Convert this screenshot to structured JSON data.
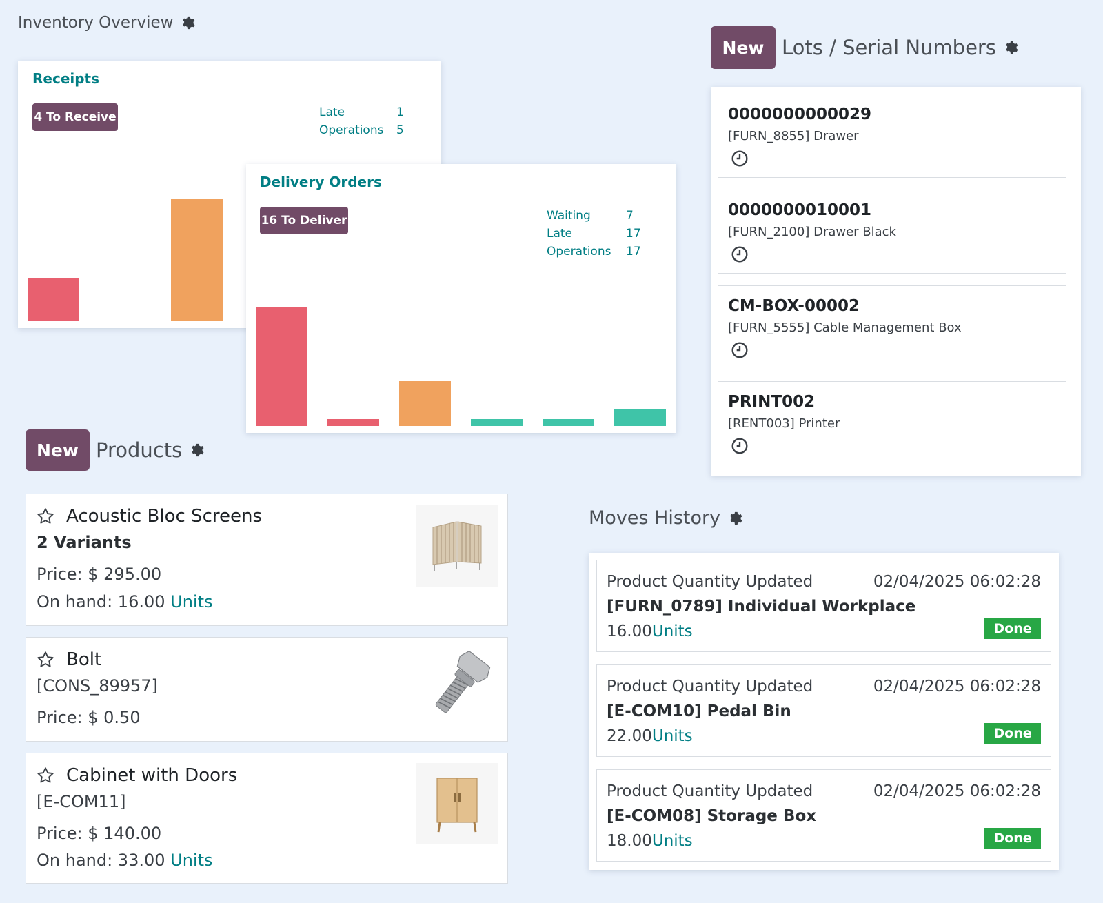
{
  "inventory": {
    "title": "Inventory Overview",
    "receipts": {
      "title": "Receipts",
      "button": "4 To Receive",
      "stats": [
        {
          "label": "Late",
          "value": "1"
        },
        {
          "label": "Operations",
          "value": "5"
        }
      ],
      "chart_data": {
        "type": "bar",
        "values": [
          10,
          0,
          30
        ],
        "colors": [
          "#e8606f",
          "#e8606f",
          "#f0a25e"
        ]
      }
    },
    "delivery": {
      "title": "Delivery Orders",
      "button": "16 To Deliver",
      "stats": [
        {
          "label": "Waiting",
          "value": "7"
        },
        {
          "label": "Late",
          "value": "17"
        },
        {
          "label": "Operations",
          "value": "17"
        }
      ],
      "chart_data": {
        "type": "bar",
        "values": [
          17,
          1,
          6.5,
          1,
          1,
          2.5
        ],
        "colors": [
          "#e8606f",
          "#e8606f",
          "#f0a25e",
          "#3fc4a8",
          "#3fc4a8",
          "#3fc4a8"
        ]
      }
    }
  },
  "lots": {
    "new_label": "New",
    "title": "Lots / Serial Numbers",
    "items": [
      {
        "code": "0000000000029",
        "product": "[FURN_8855] Drawer"
      },
      {
        "code": "0000000010001",
        "product": "[FURN_2100] Drawer Black"
      },
      {
        "code": "CM-BOX-00002",
        "product": "[FURN_5555] Cable Management Box"
      },
      {
        "code": "PRINT002",
        "product": "[RENT003] Printer"
      }
    ]
  },
  "products": {
    "new_label": "New",
    "title": "Products",
    "items": [
      {
        "name": "Acoustic Bloc Screens",
        "sub": "2 Variants",
        "price": "Price: $ 295.00",
        "onhand": "On hand: 16.00 ",
        "unit": "Units"
      },
      {
        "name": "Bolt",
        "sub": "[CONS_89957]",
        "price": "Price: $ 0.50"
      },
      {
        "name": "Cabinet with Doors",
        "sub": "[E-COM11]",
        "price": "Price: $ 140.00",
        "onhand": "On hand: 33.00 ",
        "unit": "Units"
      }
    ]
  },
  "moves": {
    "title": "Moves History",
    "items": [
      {
        "type": "Product Quantity Updated",
        "date": "02/04/2025 06:02:28",
        "product": "[FURN_0789] Individual Workplace",
        "qty": "16.00",
        "unit": "Units",
        "status": "Done"
      },
      {
        "type": "Product Quantity Updated",
        "date": "02/04/2025 06:02:28",
        "product": "[E-COM10] Pedal Bin",
        "qty": "22.00",
        "unit": "Units",
        "status": "Done"
      },
      {
        "type": "Product Quantity Updated",
        "date": "02/04/2025 06:02:28",
        "product": "[E-COM08] Storage Box",
        "qty": "18.00",
        "unit": "Units",
        "status": "Done"
      }
    ]
  }
}
